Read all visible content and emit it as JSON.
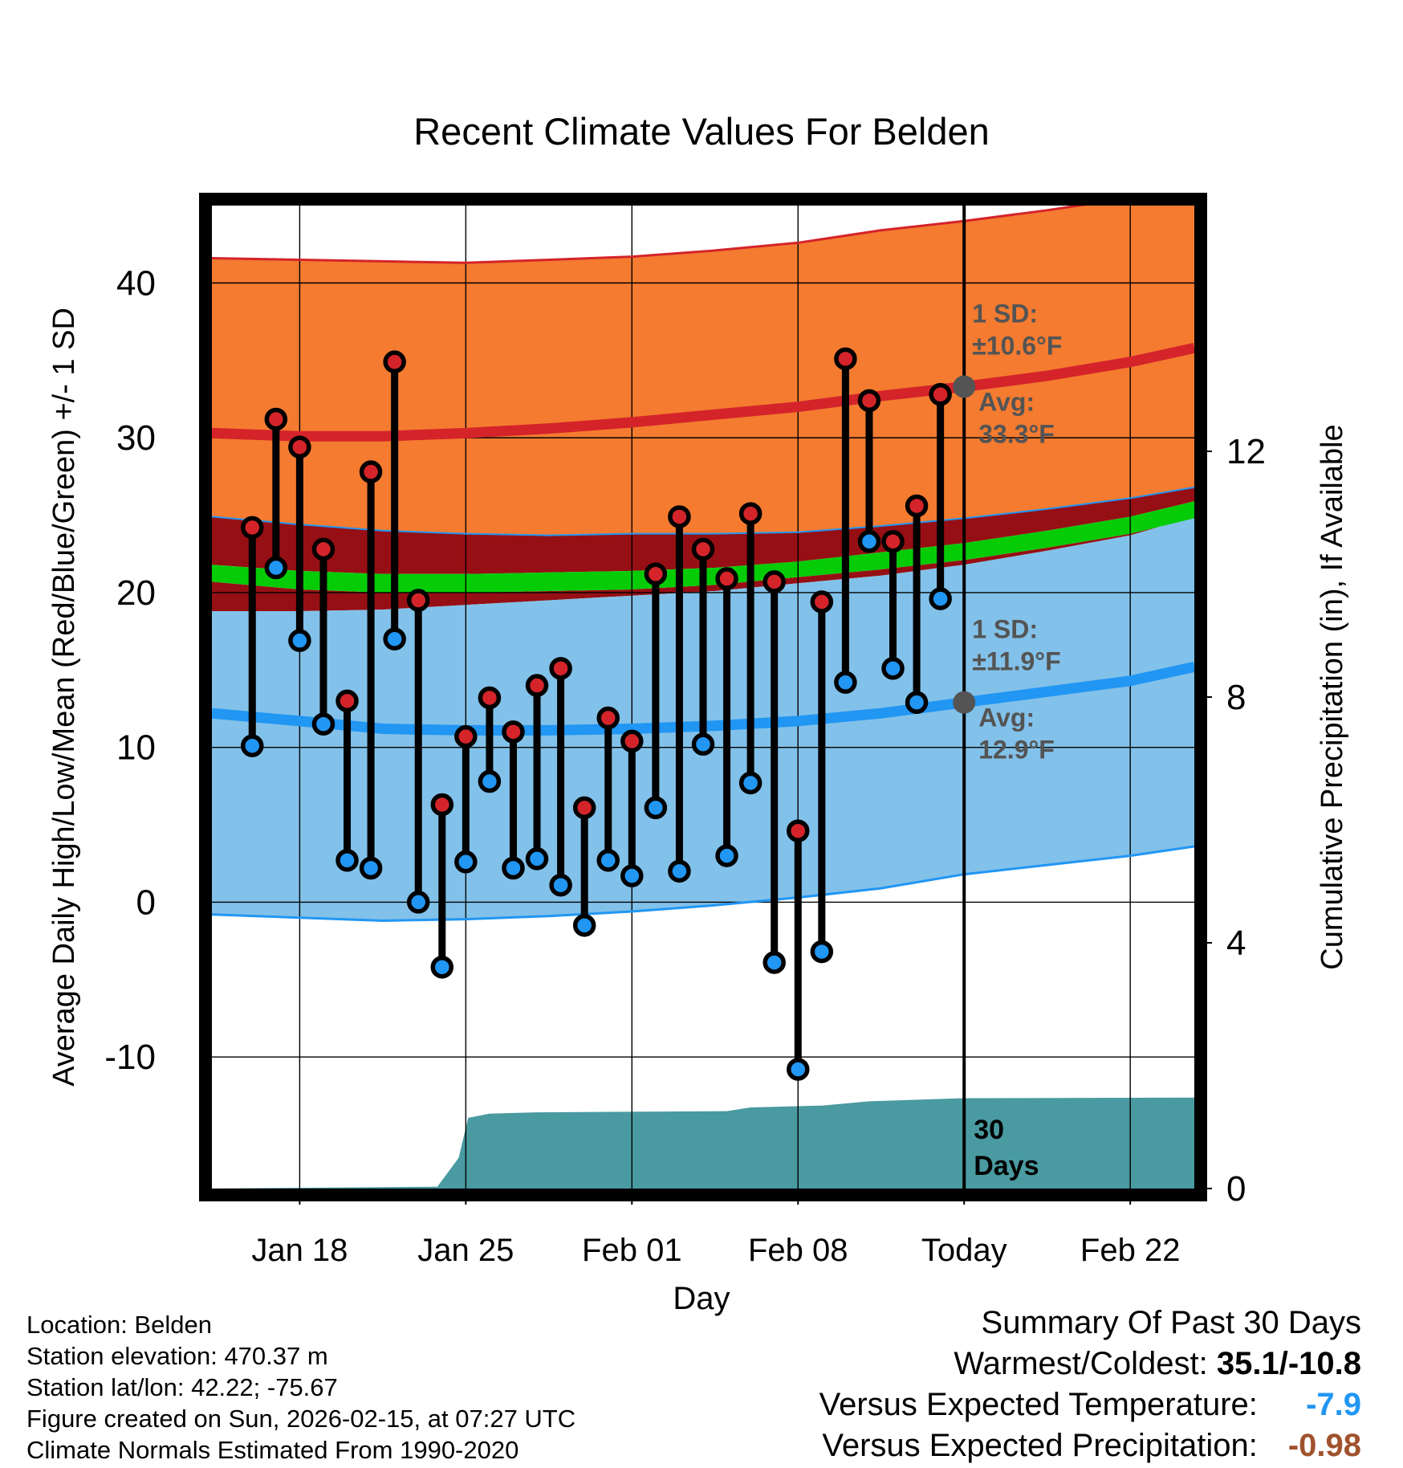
{
  "chart_data": {
    "type": "line",
    "title": "Recent Climate Values For Belden",
    "xlabel": "Day",
    "ylabel": "Average Daily High/Low/Mean (Red/Blue/Green) +/- 1 SD",
    "y2label": "Cumulative Precipitation (in), If Available",
    "ylim": [
      -18.5,
      45
    ],
    "y_ticks": [
      -10,
      0,
      10,
      20,
      30,
      40
    ],
    "y2lim": [
      0,
      16
    ],
    "y2_ticks": [
      0,
      4,
      8,
      12
    ],
    "xlim": [
      -3.7,
      37.7
    ],
    "x_ticks": [
      {
        "day": 0,
        "label": "Jan 18"
      },
      {
        "day": 7,
        "label": "Jan 25"
      },
      {
        "day": 14,
        "label": "Feb 01"
      },
      {
        "day": 21,
        "label": "Feb 08"
      },
      {
        "day": 28,
        "label": "Today"
      },
      {
        "day": 35,
        "label": "Feb 22"
      }
    ],
    "today_day": 28,
    "normal_days": [
      -3.7,
      0,
      3.5,
      7,
      10.5,
      14,
      17.5,
      21,
      24.5,
      28,
      31.5,
      35,
      37.7
    ],
    "normal_high_mean": [
      30.3,
      30.1,
      30.1,
      30.3,
      30.6,
      31.0,
      31.5,
      32.0,
      32.7,
      33.3,
      34.0,
      34.9,
      35.8
    ],
    "normal_high_plus_sd": [
      41.6,
      41.5,
      41.4,
      41.3,
      41.5,
      41.7,
      42.1,
      42.6,
      43.4,
      44.0,
      44.7,
      45.5,
      46.3
    ],
    "normal_high_minus_sd": [
      24.9,
      24.4,
      24.0,
      23.8,
      23.7,
      23.8,
      23.8,
      23.9,
      24.3,
      24.8,
      25.4,
      26.1,
      26.8
    ],
    "normal_mean_upper": [
      21.8,
      21.4,
      21.2,
      21.2,
      21.3,
      21.4,
      21.6,
      22.0,
      22.6,
      23.2,
      24.0,
      24.9,
      25.9
    ],
    "normal_mean_lower": [
      20.7,
      20.2,
      20.0,
      20.0,
      20.1,
      20.2,
      20.5,
      21.0,
      21.5,
      22.1,
      22.9,
      23.8,
      24.8
    ],
    "normal_low_mean": [
      12.2,
      11.7,
      11.2,
      11.1,
      11.1,
      11.2,
      11.4,
      11.7,
      12.2,
      12.9,
      13.6,
      14.3,
      15.2
    ],
    "normal_low_plus_sd": [
      18.8,
      18.8,
      18.9,
      19.2,
      19.5,
      19.8,
      20.1,
      20.6,
      21.1,
      21.8,
      22.7,
      23.7,
      24.9
    ],
    "normal_low_minus_sd": [
      -0.8,
      -1.0,
      -1.2,
      -1.1,
      -0.9,
      -0.6,
      -0.2,
      0.3,
      0.9,
      1.8,
      2.4,
      3.0,
      3.6
    ],
    "series": [
      {
        "name": "Daily High",
        "color": "#d4242a",
        "days": [
          -2,
          -1,
          0,
          1,
          2,
          3,
          4,
          5,
          6,
          7,
          8,
          9,
          10,
          11,
          12,
          13,
          14,
          15,
          16,
          17,
          18,
          19,
          20,
          21,
          22,
          23,
          24,
          25,
          26,
          27
        ],
        "values": [
          24.2,
          31.2,
          29.4,
          22.8,
          13.0,
          27.8,
          34.9,
          19.5,
          6.3,
          10.7,
          13.2,
          11.0,
          14.0,
          15.1,
          6.1,
          11.9,
          10.4,
          21.2,
          24.9,
          22.8,
          20.9,
          25.1,
          20.7,
          4.6,
          19.4,
          35.1,
          32.4,
          23.3,
          25.6,
          32.8
        ]
      },
      {
        "name": "Daily Low",
        "color": "#2196f3",
        "days": [
          -2,
          -1,
          0,
          1,
          2,
          3,
          4,
          5,
          6,
          7,
          8,
          9,
          10,
          11,
          12,
          13,
          14,
          15,
          16,
          17,
          18,
          19,
          20,
          21,
          22,
          23,
          24,
          25,
          26,
          27
        ],
        "values": [
          10.1,
          21.6,
          16.9,
          11.5,
          2.7,
          2.2,
          17.0,
          0.0,
          -4.2,
          2.6,
          7.8,
          2.2,
          2.8,
          1.1,
          -1.5,
          2.7,
          1.7,
          6.1,
          2.0,
          10.2,
          3.0,
          7.7,
          -3.9,
          -10.8,
          -3.2,
          14.2,
          23.3,
          15.1,
          12.9,
          19.6
        ]
      },
      {
        "name": "Cumulative Precipitation",
        "color": "#4a9aa1",
        "axis": "y2",
        "days": [
          -3.7,
          5.8,
          6.7,
          7.1,
          8,
          10,
          14,
          18,
          19,
          22,
          24,
          28,
          37.7
        ],
        "values": [
          0,
          0.03,
          0.5,
          1.15,
          1.22,
          1.24,
          1.25,
          1.26,
          1.32,
          1.35,
          1.42,
          1.47,
          1.48
        ]
      }
    ],
    "annotations": {
      "high_sd_label": "1 SD:",
      "high_sd_value": "±10.6°F",
      "high_avg_label": "Avg:",
      "high_avg_value": "33.3°F",
      "high_avg": 33.3,
      "low_sd_label": "1 SD:",
      "low_sd_value": "±11.9°F",
      "low_avg_label": "Avg:",
      "low_avg_value": "12.9°F",
      "low_avg": 12.9,
      "period_label_1": "30",
      "period_label_2": "Days"
    },
    "colors": {
      "high_band": "#f47b30",
      "high_line": "#d4242a",
      "high_minus_band": "#960f14",
      "mean_band": "#06cc08",
      "low_band": "#82c1e9",
      "low_line": "#2196f3",
      "precip": "#4a9aa1",
      "annotation": "#545454"
    }
  },
  "info": {
    "location": "Location: Belden",
    "elevation": "Station elevation: 470.37 m",
    "latlon": "Station lat/lon: 42.22; -75.67",
    "created": "Figure created on Sun, 2026-02-15, at 07:27 UTC",
    "normals": "Climate Normals Estimated From 1990-2020"
  },
  "summary": {
    "title": "Summary Of Past 30 Days",
    "warmest_coldest_label": "Warmest/Coldest:",
    "warmest_coldest_value": "35.1/-10.8",
    "temp_label": "Versus Expected Temperature:",
    "temp_value": "-7.9",
    "temp_color": "#2196f3",
    "precip_label": "Versus Expected Precipitation:",
    "precip_value": "-0.98",
    "precip_color": "#a0522d"
  }
}
